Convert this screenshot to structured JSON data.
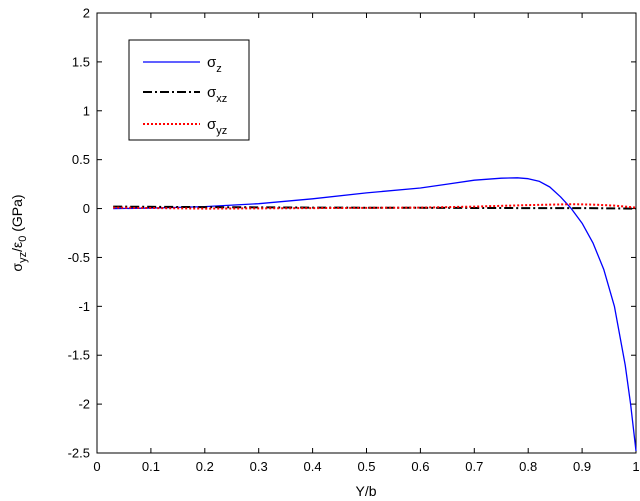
{
  "chart_data": {
    "type": "line",
    "title": "",
    "xlabel": "Y/b",
    "ylabel": {
      "base": "σ",
      "sub1": "yz",
      "mid": "/ε",
      "sub2": "0",
      "tail": " (GPa)"
    },
    "xlim": [
      0,
      1
    ],
    "ylim": [
      -2.5,
      2
    ],
    "xticks": [
      "0",
      "0.1",
      "0.2",
      "0.3",
      "0.4",
      "0.5",
      "0.6",
      "0.7",
      "0.8",
      "0.9",
      "1"
    ],
    "yticks": [
      "2",
      "1.5",
      "1",
      "0.5",
      "0",
      "-0.5",
      "-1",
      "-1.5",
      "-2",
      "-2.5"
    ],
    "grid": false,
    "legend_position": "top-left",
    "series": [
      {
        "name": "σz",
        "base": "σ",
        "sub": "z",
        "color": "#0000ff",
        "style": "solid",
        "points": [
          [
            0.03,
            0.0
          ],
          [
            0.1,
            0.005
          ],
          [
            0.2,
            0.02
          ],
          [
            0.3,
            0.05
          ],
          [
            0.4,
            0.1
          ],
          [
            0.5,
            0.16
          ],
          [
            0.6,
            0.21
          ],
          [
            0.65,
            0.25
          ],
          [
            0.7,
            0.29
          ],
          [
            0.75,
            0.31
          ],
          [
            0.78,
            0.315
          ],
          [
            0.8,
            0.305
          ],
          [
            0.82,
            0.28
          ],
          [
            0.84,
            0.22
          ],
          [
            0.86,
            0.12
          ],
          [
            0.88,
            0.0
          ],
          [
            0.9,
            -0.15
          ],
          [
            0.92,
            -0.35
          ],
          [
            0.94,
            -0.62
          ],
          [
            0.96,
            -1.0
          ],
          [
            0.98,
            -1.6
          ],
          [
            0.99,
            -2.0
          ],
          [
            1.0,
            -2.48
          ]
        ]
      },
      {
        "name": "σxz",
        "base": "σ",
        "sub": "xz",
        "color": "#000000",
        "style": "dashdot",
        "points": [
          [
            0.03,
            0.02
          ],
          [
            0.2,
            0.015
          ],
          [
            0.4,
            0.01
          ],
          [
            0.6,
            0.008
          ],
          [
            0.8,
            0.005
          ],
          [
            0.9,
            0.005
          ],
          [
            1.0,
            0.0
          ]
        ]
      },
      {
        "name": "σyz",
        "base": "σ",
        "sub": "yz",
        "color": "#ff0000",
        "style": "dotted",
        "points": [
          [
            0.03,
            0.01
          ],
          [
            0.2,
            0.0
          ],
          [
            0.4,
            0.005
          ],
          [
            0.6,
            0.01
          ],
          [
            0.7,
            0.02
          ],
          [
            0.8,
            0.035
          ],
          [
            0.88,
            0.045
          ],
          [
            0.92,
            0.04
          ],
          [
            0.96,
            0.03
          ],
          [
            1.0,
            0.01
          ]
        ]
      }
    ]
  }
}
